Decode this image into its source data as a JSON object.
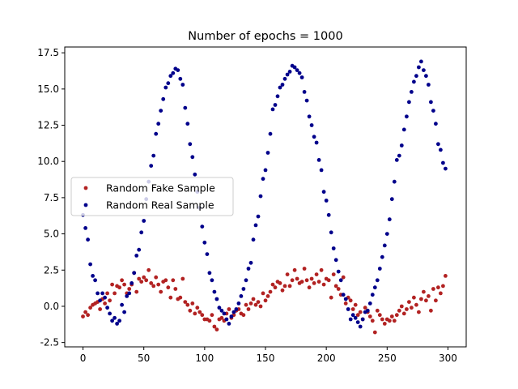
{
  "chart_data": {
    "type": "scatter",
    "title": "Number of epochs = 1000",
    "xlabel": "",
    "ylabel": "",
    "xlim": [
      -15,
      315
    ],
    "ylim": [
      -2.8,
      17.9
    ],
    "xticks": [
      0,
      50,
      100,
      150,
      200,
      250,
      300
    ],
    "yticks": [
      -2.5,
      0.0,
      2.5,
      5.0,
      7.5,
      10.0,
      12.5,
      15.0,
      17.5
    ],
    "grid": false,
    "legend_position": "center-left",
    "series": [
      {
        "name": "Random Fake Sample",
        "color": "#b22222",
        "points": [
          [
            0,
            -0.7
          ],
          [
            2,
            -0.4
          ],
          [
            4,
            -0.6
          ],
          [
            6,
            -0.1
          ],
          [
            8,
            0.1
          ],
          [
            10,
            0.2
          ],
          [
            12,
            0.3
          ],
          [
            14,
            -0.2
          ],
          [
            16,
            0.5
          ],
          [
            18,
            0.2
          ],
          [
            20,
            0.9
          ],
          [
            22,
            0.4
          ],
          [
            24,
            1.5
          ],
          [
            26,
            0.9
          ],
          [
            28,
            1.4
          ],
          [
            30,
            1.3
          ],
          [
            32,
            1.8
          ],
          [
            34,
            1.5
          ],
          [
            36,
            0.9
          ],
          [
            38,
            1.2
          ],
          [
            40,
            1.5
          ],
          [
            42,
            2.3
          ],
          [
            44,
            1.0
          ],
          [
            46,
            1.9
          ],
          [
            48,
            1.7
          ],
          [
            50,
            2.0
          ],
          [
            52,
            1.8
          ],
          [
            54,
            2.5
          ],
          [
            56,
            1.6
          ],
          [
            58,
            1.4
          ],
          [
            60,
            2.0
          ],
          [
            62,
            1.5
          ],
          [
            64,
            1.0
          ],
          [
            66,
            1.7
          ],
          [
            68,
            1.8
          ],
          [
            70,
            1.3
          ],
          [
            72,
            0.6
          ],
          [
            74,
            1.8
          ],
          [
            76,
            1.2
          ],
          [
            78,
            0.5
          ],
          [
            80,
            0.6
          ],
          [
            82,
            1.9
          ],
          [
            84,
            0.3
          ],
          [
            86,
            0.1
          ],
          [
            88,
            -0.3
          ],
          [
            90,
            0.2
          ],
          [
            92,
            -0.5
          ],
          [
            94,
            -0.1
          ],
          [
            96,
            -0.4
          ],
          [
            98,
            -0.6
          ],
          [
            100,
            -0.9
          ],
          [
            102,
            -0.9
          ],
          [
            104,
            -1.0
          ],
          [
            106,
            -0.6
          ],
          [
            108,
            -1.4
          ],
          [
            110,
            -1.6
          ],
          [
            112,
            -0.9
          ],
          [
            114,
            -0.8
          ],
          [
            116,
            -1.0
          ],
          [
            118,
            -0.5
          ],
          [
            120,
            -0.2
          ],
          [
            122,
            -0.8
          ],
          [
            124,
            -0.6
          ],
          [
            126,
            -0.3
          ],
          [
            128,
            -0.2
          ],
          [
            130,
            -0.5
          ],
          [
            132,
            -0.6
          ],
          [
            134,
            0.1
          ],
          [
            136,
            -0.2
          ],
          [
            138,
            0.2
          ],
          [
            140,
            0.5
          ],
          [
            142,
            0.1
          ],
          [
            144,
            0.3
          ],
          [
            146,
            0.0
          ],
          [
            148,
            0.9
          ],
          [
            150,
            0.4
          ],
          [
            152,
            0.7
          ],
          [
            154,
            1.0
          ],
          [
            156,
            1.5
          ],
          [
            158,
            1.3
          ],
          [
            160,
            1.7
          ],
          [
            162,
            1.6
          ],
          [
            164,
            1.1
          ],
          [
            166,
            1.4
          ],
          [
            168,
            2.2
          ],
          [
            170,
            1.4
          ],
          [
            172,
            1.8
          ],
          [
            174,
            2.5
          ],
          [
            176,
            1.9
          ],
          [
            178,
            1.6
          ],
          [
            180,
            1.7
          ],
          [
            182,
            2.6
          ],
          [
            184,
            1.8
          ],
          [
            186,
            1.3
          ],
          [
            188,
            1.9
          ],
          [
            190,
            1.6
          ],
          [
            192,
            2.2
          ],
          [
            194,
            1.7
          ],
          [
            196,
            2.5
          ],
          [
            198,
            1.5
          ],
          [
            200,
            1.9
          ],
          [
            202,
            1.8
          ],
          [
            204,
            0.6
          ],
          [
            206,
            2.2
          ],
          [
            208,
            1.4
          ],
          [
            210,
            1.2
          ],
          [
            212,
            0.8
          ],
          [
            214,
            2.0
          ],
          [
            216,
            0.2
          ],
          [
            218,
            0.6
          ],
          [
            220,
            0.4
          ],
          [
            222,
            -0.2
          ],
          [
            224,
            0.1
          ],
          [
            226,
            -0.6
          ],
          [
            228,
            -0.4
          ],
          [
            230,
            -0.9
          ],
          [
            232,
            -0.1
          ],
          [
            234,
            -0.4
          ],
          [
            236,
            -0.7
          ],
          [
            238,
            -1.0
          ],
          [
            240,
            -1.8
          ],
          [
            242,
            -0.3
          ],
          [
            244,
            -0.6
          ],
          [
            246,
            -0.9
          ],
          [
            248,
            -1.2
          ],
          [
            250,
            -0.9
          ],
          [
            252,
            -1.0
          ],
          [
            254,
            -0.7
          ],
          [
            256,
            -1.0
          ],
          [
            258,
            -0.6
          ],
          [
            260,
            -0.3
          ],
          [
            262,
            0.0
          ],
          [
            264,
            -0.5
          ],
          [
            266,
            -0.2
          ],
          [
            268,
            0.3
          ],
          [
            270,
            -0.1
          ],
          [
            272,
            0.6
          ],
          [
            274,
            0.1
          ],
          [
            276,
            -0.4
          ],
          [
            278,
            0.5
          ],
          [
            280,
            1.0
          ],
          [
            282,
            0.4
          ],
          [
            284,
            0.7
          ],
          [
            286,
            -0.3
          ],
          [
            288,
            1.2
          ],
          [
            290,
            0.4
          ],
          [
            292,
            1.3
          ],
          [
            294,
            0.9
          ],
          [
            296,
            1.4
          ],
          [
            298,
            2.1
          ]
        ]
      },
      {
        "name": "Random Real Sample",
        "color": "#00008b",
        "points": [
          [
            0,
            6.3
          ],
          [
            2,
            5.4
          ],
          [
            4,
            4.6
          ],
          [
            6,
            2.9
          ],
          [
            8,
            2.1
          ],
          [
            10,
            1.8
          ],
          [
            12,
            0.9
          ],
          [
            14,
            0.4
          ],
          [
            16,
            0.9
          ],
          [
            18,
            0.6
          ],
          [
            20,
            -0.1
          ],
          [
            22,
            -0.5
          ],
          [
            24,
            -1.0
          ],
          [
            26,
            -0.8
          ],
          [
            28,
            -1.2
          ],
          [
            30,
            -1.0
          ],
          [
            32,
            0.1
          ],
          [
            34,
            -0.4
          ],
          [
            36,
            0.7
          ],
          [
            38,
            0.9
          ],
          [
            40,
            1.6
          ],
          [
            42,
            2.3
          ],
          [
            44,
            3.5
          ],
          [
            46,
            3.9
          ],
          [
            48,
            5.1
          ],
          [
            50,
            5.9
          ],
          [
            52,
            7.4
          ],
          [
            54,
            8.6
          ],
          [
            56,
            9.7
          ],
          [
            58,
            10.4
          ],
          [
            60,
            11.9
          ],
          [
            62,
            12.6
          ],
          [
            64,
            13.5
          ],
          [
            66,
            14.3
          ],
          [
            68,
            15.1
          ],
          [
            70,
            15.4
          ],
          [
            72,
            15.9
          ],
          [
            74,
            16.1
          ],
          [
            76,
            16.4
          ],
          [
            78,
            16.3
          ],
          [
            80,
            15.7
          ],
          [
            82,
            15.3
          ],
          [
            84,
            13.7
          ],
          [
            86,
            12.6
          ],
          [
            88,
            11.2
          ],
          [
            90,
            10.3
          ],
          [
            92,
            9.1
          ],
          [
            94,
            7.9
          ],
          [
            96,
            6.8
          ],
          [
            98,
            5.5
          ],
          [
            100,
            4.4
          ],
          [
            102,
            3.6
          ],
          [
            104,
            2.3
          ],
          [
            106,
            1.8
          ],
          [
            108,
            1.0
          ],
          [
            110,
            0.5
          ],
          [
            112,
            -0.1
          ],
          [
            114,
            -0.3
          ],
          [
            116,
            -0.5
          ],
          [
            118,
            -0.9
          ],
          [
            120,
            -1.2
          ],
          [
            122,
            -0.7
          ],
          [
            124,
            -0.4
          ],
          [
            126,
            -0.2
          ],
          [
            128,
            0.2
          ],
          [
            130,
            0.7
          ],
          [
            132,
            1.2
          ],
          [
            134,
            1.8
          ],
          [
            136,
            2.6
          ],
          [
            138,
            3.0
          ],
          [
            140,
            4.6
          ],
          [
            142,
            5.6
          ],
          [
            144,
            6.2
          ],
          [
            146,
            7.6
          ],
          [
            148,
            8.8
          ],
          [
            150,
            9.4
          ],
          [
            152,
            10.6
          ],
          [
            154,
            11.9
          ],
          [
            156,
            13.6
          ],
          [
            158,
            13.9
          ],
          [
            160,
            14.5
          ],
          [
            162,
            15.1
          ],
          [
            164,
            15.3
          ],
          [
            166,
            15.7
          ],
          [
            168,
            16.0
          ],
          [
            170,
            16.2
          ],
          [
            172,
            16.6
          ],
          [
            174,
            16.5
          ],
          [
            176,
            16.3
          ],
          [
            178,
            16.1
          ],
          [
            180,
            15.8
          ],
          [
            182,
            14.8
          ],
          [
            184,
            14.2
          ],
          [
            186,
            13.1
          ],
          [
            188,
            12.5
          ],
          [
            190,
            11.7
          ],
          [
            192,
            11.3
          ],
          [
            194,
            10.1
          ],
          [
            196,
            9.4
          ],
          [
            198,
            7.9
          ],
          [
            200,
            7.3
          ],
          [
            202,
            6.3
          ],
          [
            204,
            5.1
          ],
          [
            206,
            4.0
          ],
          [
            208,
            3.2
          ],
          [
            210,
            2.4
          ],
          [
            212,
            1.8
          ],
          [
            214,
            0.8
          ],
          [
            216,
            0.5
          ],
          [
            218,
            -0.2
          ],
          [
            220,
            -0.9
          ],
          [
            222,
            -0.6
          ],
          [
            224,
            -0.8
          ],
          [
            226,
            -1.1
          ],
          [
            228,
            -1.4
          ],
          [
            230,
            -0.9
          ],
          [
            232,
            -0.4
          ],
          [
            234,
            -0.3
          ],
          [
            236,
            0.2
          ],
          [
            238,
            0.8
          ],
          [
            240,
            1.3
          ],
          [
            242,
            1.8
          ],
          [
            244,
            2.6
          ],
          [
            246,
            3.4
          ],
          [
            248,
            4.2
          ],
          [
            250,
            5.0
          ],
          [
            252,
            6.0
          ],
          [
            254,
            7.4
          ],
          [
            256,
            8.6
          ],
          [
            258,
            10.1
          ],
          [
            260,
            10.4
          ],
          [
            262,
            11.1
          ],
          [
            264,
            12.2
          ],
          [
            266,
            13.1
          ],
          [
            268,
            14.1
          ],
          [
            270,
            14.8
          ],
          [
            272,
            15.5
          ],
          [
            274,
            15.9
          ],
          [
            276,
            16.5
          ],
          [
            278,
            16.9
          ],
          [
            280,
            16.3
          ],
          [
            282,
            15.9
          ],
          [
            284,
            15.3
          ],
          [
            286,
            14.1
          ],
          [
            288,
            13.5
          ],
          [
            290,
            12.6
          ],
          [
            292,
            11.2
          ],
          [
            294,
            10.8
          ],
          [
            296,
            9.9
          ],
          [
            298,
            9.5
          ]
        ]
      }
    ]
  }
}
